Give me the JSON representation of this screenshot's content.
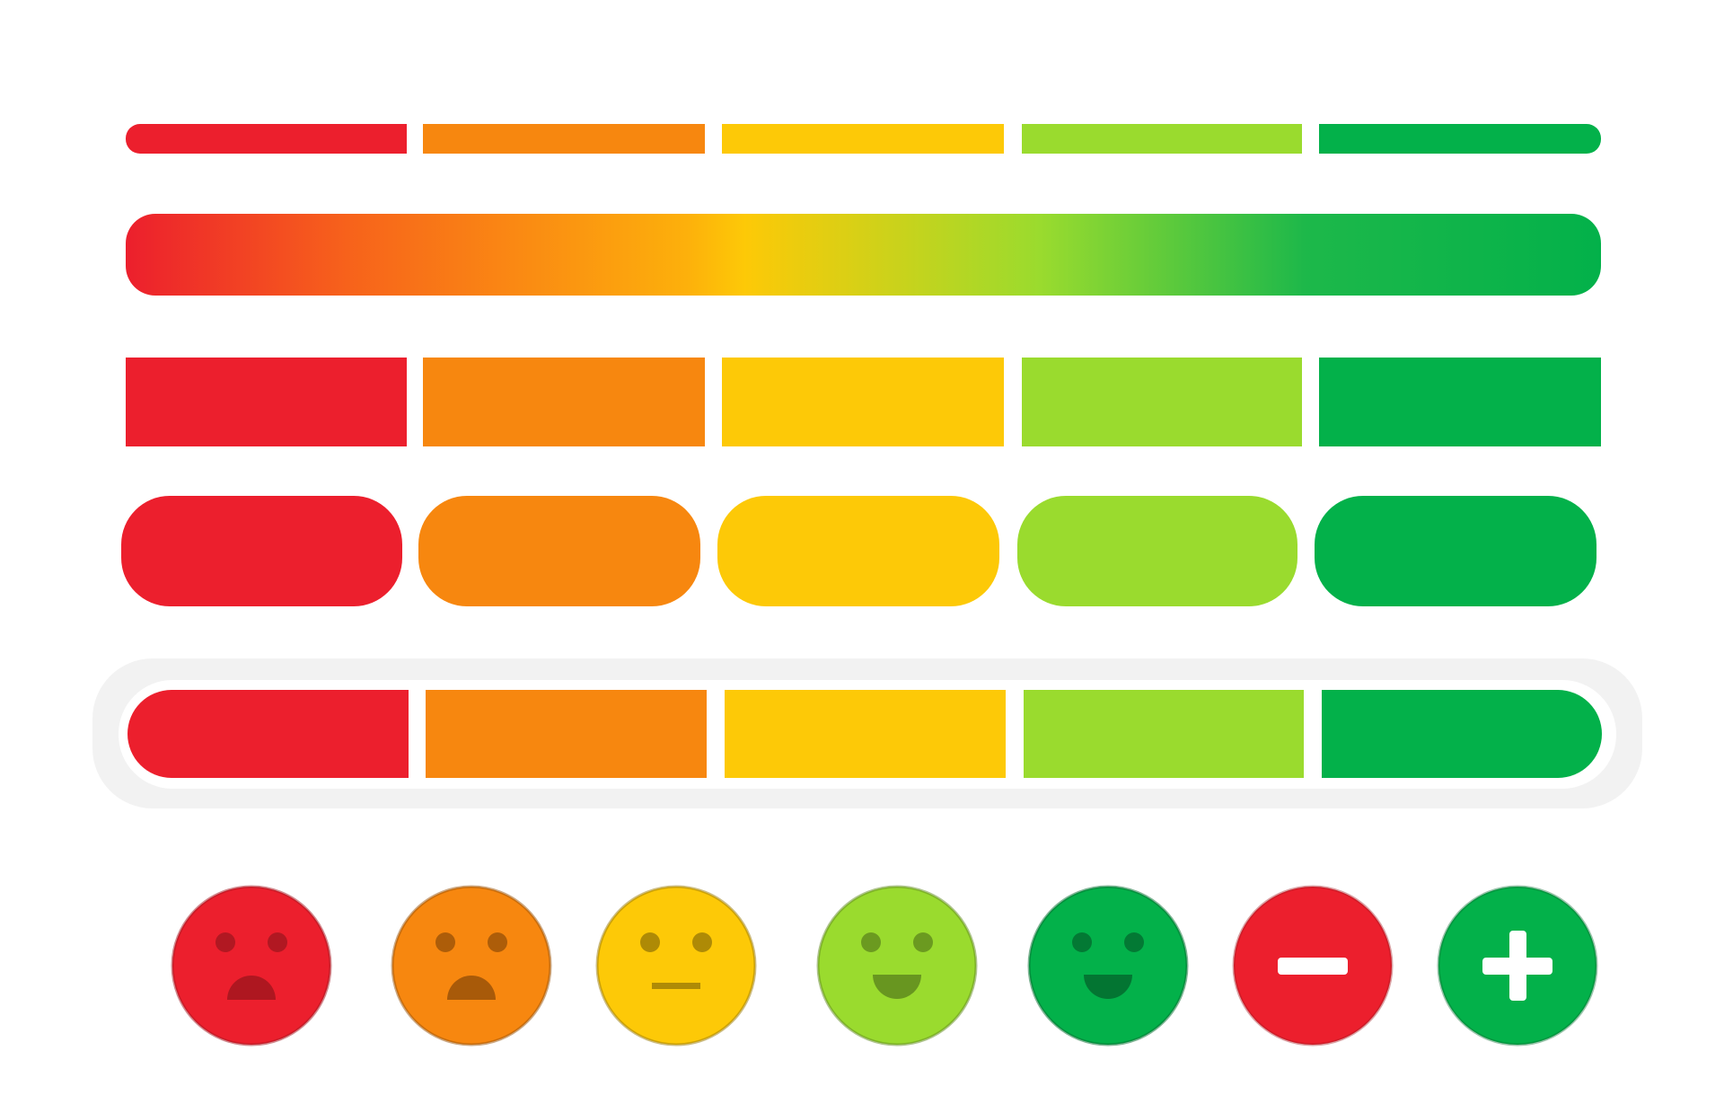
{
  "palette": [
    "#ec1f2d",
    "#f7870f",
    "#fdc907",
    "#9adb2e",
    "#03b14a"
  ],
  "features": [
    "#a3161f",
    "#9a5208",
    "#9a7a06",
    "#5f8a1d",
    "#046b2e"
  ]
}
